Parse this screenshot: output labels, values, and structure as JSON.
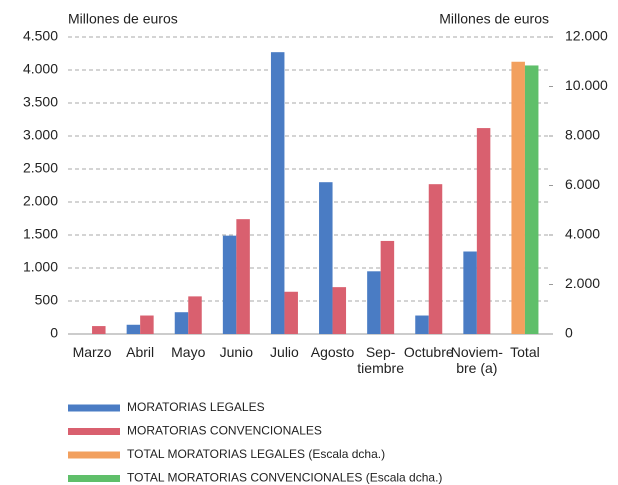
{
  "chart_data": {
    "type": "bar",
    "y_axis_label": "Millones de euros",
    "y2_axis_label": "Millones de euros",
    "categories": [
      "Marzo",
      "Abril",
      "Mayo",
      "Junio",
      "Julio",
      "Agosto",
      "Sep-\ntiembre",
      "Octubre",
      "Noviem-\nbre (a)",
      "Total"
    ],
    "series": [
      {
        "name": "MORATORIAS LEGALES",
        "color": "#4a7cc4",
        "values": [
          0,
          140,
          330,
          1490,
          4270,
          2300,
          950,
          280,
          1250,
          null
        ]
      },
      {
        "name": "MORATORIAS CONVENCIONALES",
        "color": "#d9606f",
        "values": [
          120,
          280,
          570,
          1740,
          640,
          710,
          1410,
          2270,
          3120,
          null
        ]
      },
      {
        "name": "TOTAL MORATORIAS LEGALES (Escala dcha.)",
        "color": "#f2a05e",
        "axis": "y2",
        "values": [
          null,
          null,
          null,
          null,
          null,
          null,
          null,
          null,
          null,
          11000
        ]
      },
      {
        "name": "TOTAL MORATORIAS CONVENCIONALES (Escala dcha.)",
        "color": "#5fbf6a",
        "axis": "y2",
        "values": [
          null,
          null,
          null,
          null,
          null,
          null,
          null,
          null,
          null,
          10850
        ]
      }
    ],
    "ylim": [
      0,
      4500
    ],
    "yticks": [
      0,
      500,
      {
        "value": 1000,
        "label": "1.000"
      },
      {
        "value": 1500,
        "label": "1.500"
      },
      {
        "value": 2000,
        "label": "2.000"
      },
      {
        "value": 2500,
        "label": "2.500"
      },
      {
        "value": 3000,
        "label": "3.000"
      },
      {
        "value": 3500,
        "label": "3.500"
      },
      {
        "value": 4000,
        "label": "4.000"
      },
      {
        "value": 4500,
        "label": "4.500"
      }
    ],
    "y2lim": [
      0,
      12000
    ],
    "y2ticks": [
      0,
      {
        "value": 2000,
        "label": "2.000"
      },
      {
        "value": 4000,
        "label": "4.000"
      },
      {
        "value": 6000,
        "label": "6.000"
      },
      {
        "value": 8000,
        "label": "8.000"
      },
      {
        "value": 10000,
        "label": "10.000"
      },
      {
        "value": 12000,
        "label": "12.000"
      }
    ],
    "grid": true
  }
}
